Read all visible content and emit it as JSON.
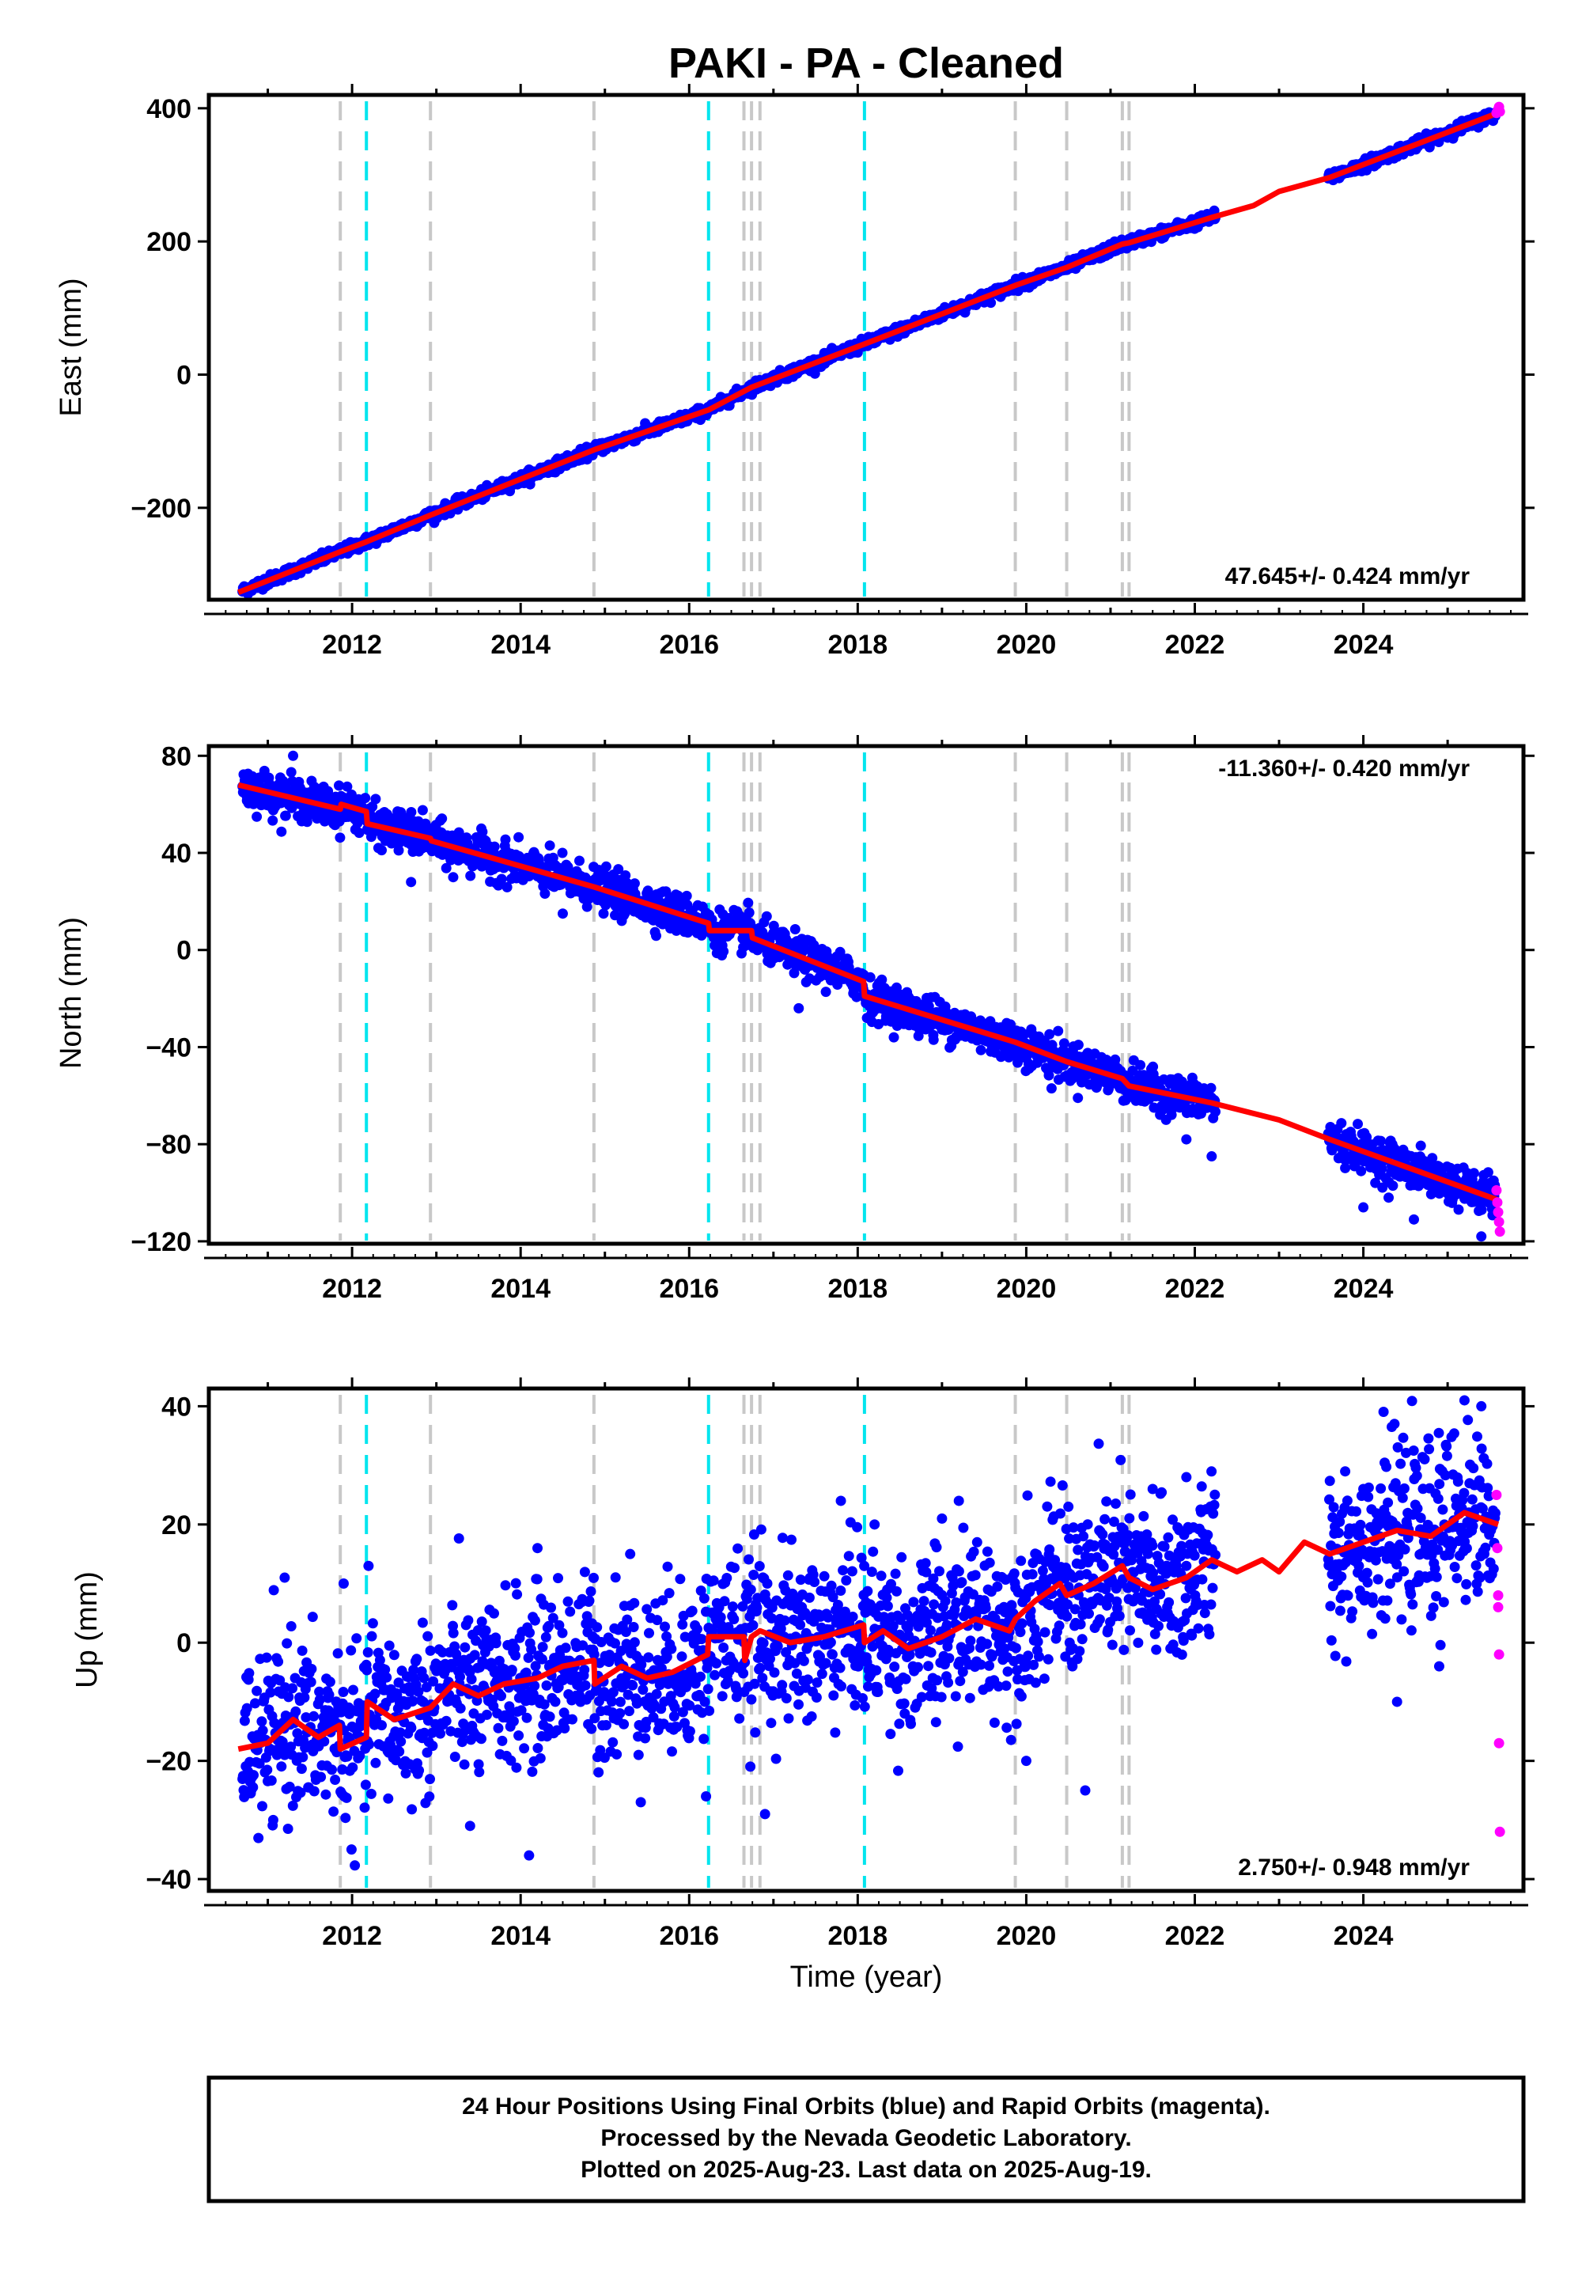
{
  "chart_data": {
    "type": "scatter",
    "title": "PAKI  - PA - Cleaned",
    "xlabel": "Time (year)",
    "x_ticks": [
      "2012",
      "2014",
      "2016",
      "2018",
      "2020",
      "2022",
      "2024"
    ],
    "xlim": [
      2010.3,
      2025.9
    ],
    "steps_gray": [
      2011.86,
      2012.93,
      2014.87,
      2016.65,
      2016.74,
      2016.84,
      2019.87,
      2020.48,
      2021.14,
      2021.22
    ],
    "steps_cyan": [
      2012.17,
      2016.23,
      2018.08
    ],
    "colors": {
      "final": "#0000ff",
      "rapid": "#ff00ff",
      "model": "#ff0000",
      "step_gray": "#c8c8c8",
      "step_cyan": "#00e5ee"
    },
    "panels": [
      {
        "name": "east",
        "ylabel": "East (mm)",
        "ylim": [
          -338,
          420
        ],
        "y_ticks": [
          {
            "v": 400,
            "label": "400"
          },
          {
            "v": 200,
            "label": "200"
          },
          {
            "v": 0,
            "label": "0"
          },
          {
            "v": -200,
            "label": "−200"
          }
        ],
        "rate_text": "47.645+/- 0.424 mm/yr",
        "rate_pos": "bottom-right",
        "noise": 4,
        "model": [
          [
            2010.65,
            -327
          ],
          [
            2011.86,
            -266
          ],
          [
            2012.17,
            -251
          ],
          [
            2012.93,
            -211
          ],
          [
            2014.87,
            -113
          ],
          [
            2016.23,
            -53
          ],
          [
            2016.74,
            -19
          ],
          [
            2018.08,
            46
          ],
          [
            2019.87,
            134
          ],
          [
            2020.48,
            161
          ],
          [
            2021.14,
            196
          ],
          [
            2021.22,
            198
          ],
          [
            2022.2,
            236
          ],
          [
            2022.7,
            254
          ],
          [
            2023.0,
            275
          ],
          [
            2023.6,
            296
          ],
          [
            2025.6,
            393
          ]
        ],
        "gaps": [
          [
            2022.25,
            2023.58
          ]
        ],
        "outliers": [],
        "rapid": [
          [
            2025.58,
            393
          ],
          [
            2025.6,
            398
          ],
          [
            2025.61,
            402
          ],
          [
            2025.62,
            395
          ]
        ]
      },
      {
        "name": "north",
        "ylabel": "North (mm)",
        "ylim": [
          -121,
          84
        ],
        "y_ticks": [
          {
            "v": 80,
            "label": "80"
          },
          {
            "v": 40,
            "label": "40"
          },
          {
            "v": 0,
            "label": "0"
          },
          {
            "v": -40,
            "label": "−40"
          },
          {
            "v": -80,
            "label": "−80"
          },
          {
            "v": -120,
            "label": "−120"
          }
        ],
        "rate_text": "-11.360+/- 0.420 mm/yr",
        "rate_pos": "top-right",
        "noise": 4,
        "model": [
          [
            2010.65,
            68
          ],
          [
            2011.86,
            58
          ],
          [
            2011.87,
            60
          ],
          [
            2012.17,
            57
          ],
          [
            2012.18,
            52
          ],
          [
            2012.93,
            46
          ],
          [
            2012.94,
            45
          ],
          [
            2014.87,
            26
          ],
          [
            2016.23,
            11
          ],
          [
            2016.24,
            8
          ],
          [
            2016.74,
            8
          ],
          [
            2016.75,
            5
          ],
          [
            2018.07,
            -13
          ],
          [
            2018.08,
            -19
          ],
          [
            2019.87,
            -38
          ],
          [
            2020.48,
            -46
          ],
          [
            2021.14,
            -53
          ],
          [
            2021.22,
            -56
          ],
          [
            2022.2,
            -63
          ],
          [
            2023.0,
            -70
          ],
          [
            2023.6,
            -78
          ],
          [
            2025.6,
            -103
          ]
        ],
        "gaps": [
          [
            2022.25,
            2023.58
          ]
        ],
        "outliers": [
          [
            2011.3,
            80
          ],
          [
            2012.7,
            28
          ],
          [
            2013.2,
            30
          ],
          [
            2014.5,
            15
          ],
          [
            2015.2,
            12
          ],
          [
            2017.3,
            -24
          ],
          [
            2018.9,
            -37
          ],
          [
            2019.7,
            -44
          ],
          [
            2020.3,
            -57
          ],
          [
            2021.9,
            -78
          ],
          [
            2022.2,
            -85
          ],
          [
            2024.0,
            -106
          ],
          [
            2024.6,
            -111
          ],
          [
            2025.4,
            -118
          ],
          [
            2024.3,
            -102
          ]
        ],
        "rapid": [
          [
            2025.58,
            -99
          ],
          [
            2025.59,
            -104
          ],
          [
            2025.6,
            -108
          ],
          [
            2025.61,
            -112
          ],
          [
            2025.62,
            -116
          ]
        ]
      },
      {
        "name": "up",
        "ylabel": "Up (mm)",
        "ylim": [
          -42,
          43
        ],
        "y_ticks": [
          {
            "v": 40,
            "label": "40"
          },
          {
            "v": 20,
            "label": "20"
          },
          {
            "v": 0,
            "label": "0"
          },
          {
            "v": -20,
            "label": "−20"
          },
          {
            "v": -40,
            "label": "−40"
          }
        ],
        "rate_text": "2.750+/- 0.948 mm/yr",
        "rate_pos": "bottom-right",
        "noise": 7,
        "model": [
          [
            2010.65,
            -18
          ],
          [
            2011.0,
            -17
          ],
          [
            2011.3,
            -13
          ],
          [
            2011.6,
            -16
          ],
          [
            2011.85,
            -14
          ],
          [
            2011.86,
            -18
          ],
          [
            2012.17,
            -16
          ],
          [
            2012.18,
            -10
          ],
          [
            2012.5,
            -13
          ],
          [
            2012.93,
            -11
          ],
          [
            2013.2,
            -7
          ],
          [
            2013.5,
            -9
          ],
          [
            2013.8,
            -7
          ],
          [
            2014.2,
            -6
          ],
          [
            2014.5,
            -4
          ],
          [
            2014.87,
            -3
          ],
          [
            2014.88,
            -7
          ],
          [
            2015.2,
            -4
          ],
          [
            2015.5,
            -6
          ],
          [
            2015.8,
            -5
          ],
          [
            2016.22,
            -2
          ],
          [
            2016.23,
            1
          ],
          [
            2016.65,
            1
          ],
          [
            2016.66,
            -3
          ],
          [
            2016.74,
            1
          ],
          [
            2016.84,
            2
          ],
          [
            2017.2,
            0
          ],
          [
            2017.6,
            1
          ],
          [
            2018.07,
            3
          ],
          [
            2018.08,
            0
          ],
          [
            2018.3,
            2
          ],
          [
            2018.6,
            -1
          ],
          [
            2019.0,
            1
          ],
          [
            2019.4,
            4
          ],
          [
            2019.8,
            2
          ],
          [
            2019.87,
            4
          ],
          [
            2020.1,
            7
          ],
          [
            2020.4,
            10
          ],
          [
            2020.48,
            8
          ],
          [
            2020.8,
            10
          ],
          [
            2021.14,
            13
          ],
          [
            2021.22,
            11
          ],
          [
            2021.5,
            9
          ],
          [
            2021.9,
            11
          ],
          [
            2022.2,
            14
          ],
          [
            2022.5,
            12
          ],
          [
            2022.8,
            14
          ],
          [
            2023.0,
            12
          ],
          [
            2023.3,
            17
          ],
          [
            2023.6,
            15
          ],
          [
            2024.0,
            17
          ],
          [
            2024.4,
            19
          ],
          [
            2024.8,
            18
          ],
          [
            2025.2,
            22
          ],
          [
            2025.6,
            20
          ]
        ],
        "gaps": [
          [
            2022.25,
            2023.58
          ]
        ],
        "outliers": [
          [
            2011.2,
            11
          ],
          [
            2011.9,
            10
          ],
          [
            2013.4,
            -31
          ],
          [
            2014.1,
            -36
          ],
          [
            2014.2,
            16
          ],
          [
            2015.3,
            15
          ],
          [
            2016.2,
            -26
          ],
          [
            2016.9,
            -29
          ],
          [
            2017.8,
            24
          ],
          [
            2018.2,
            20
          ],
          [
            2019.0,
            21
          ],
          [
            2019.2,
            24
          ],
          [
            2020.0,
            -20
          ],
          [
            2020.5,
            23
          ],
          [
            2020.7,
            -25
          ],
          [
            2021.5,
            26
          ],
          [
            2021.9,
            28
          ],
          [
            2024.0,
            26
          ],
          [
            2024.4,
            -10
          ],
          [
            2025.2,
            41
          ],
          [
            2024.9,
            -4
          ],
          [
            2025.4,
            40
          ]
        ],
        "rapid": [
          [
            2025.58,
            25
          ],
          [
            2025.59,
            16
          ],
          [
            2025.6,
            8
          ],
          [
            2025.6,
            6
          ],
          [
            2025.61,
            -2
          ],
          [
            2025.61,
            -17
          ],
          [
            2025.62,
            -32
          ]
        ]
      }
    ],
    "footer": [
      "24 Hour Positions Using Final Orbits (blue) and Rapid Orbits (magenta).",
      "Processed by the Nevada Geodetic Laboratory.",
      "Plotted on 2025-Aug-23. Last data on 2025-Aug-19."
    ]
  }
}
